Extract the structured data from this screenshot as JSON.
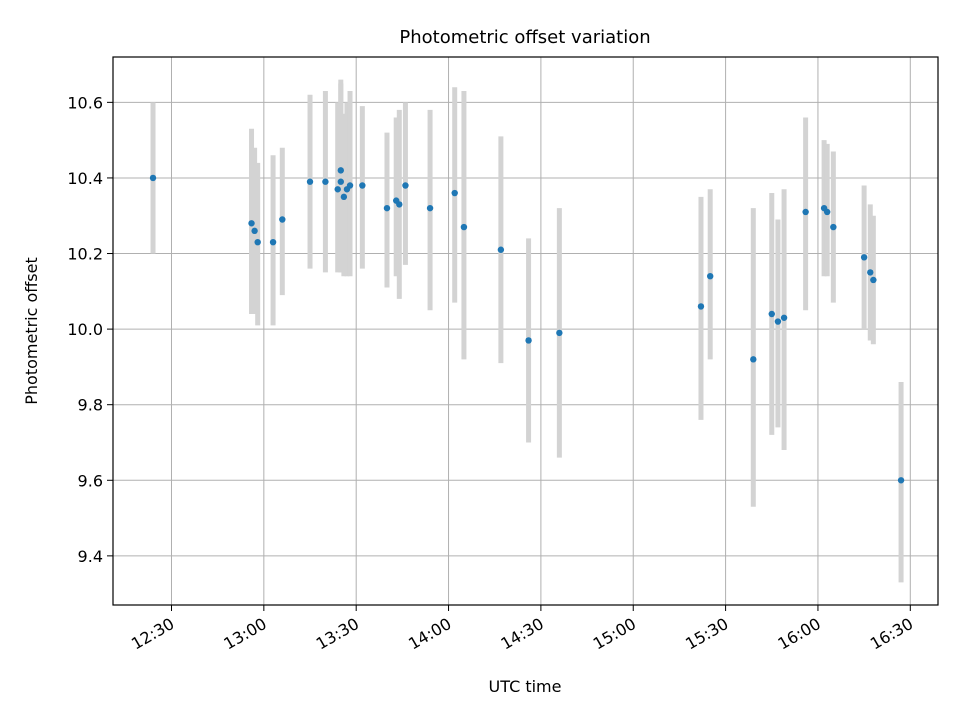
{
  "chart_data": {
    "type": "scatter",
    "title": "Photometric offset variation",
    "xlabel": "UTC time",
    "ylabel": "Photometric offset",
    "x_ticks": [
      "12:30",
      "13:00",
      "13:30",
      "14:00",
      "14:30",
      "15:00",
      "15:30",
      "16:00",
      "16:30"
    ],
    "y_ticks": [
      "9.4",
      "9.6",
      "9.8",
      "10.0",
      "10.2",
      "10.4",
      "10.6"
    ],
    "xlim": [
      "12:11",
      "16:39"
    ],
    "ylim": [
      9.27,
      10.72
    ],
    "grid": true,
    "marker_color": "#1f77b4",
    "errorbar_color": "#d3d3d3",
    "points": [
      {
        "x": "12:24",
        "y": 10.4,
        "lo": 10.2,
        "hi": 10.6
      },
      {
        "x": "12:56",
        "y": 10.28,
        "lo": 10.04,
        "hi": 10.53
      },
      {
        "x": "12:57",
        "y": 10.26,
        "lo": 10.04,
        "hi": 10.48
      },
      {
        "x": "12:58",
        "y": 10.23,
        "lo": 10.01,
        "hi": 10.44
      },
      {
        "x": "13:03",
        "y": 10.23,
        "lo": 10.01,
        "hi": 10.46
      },
      {
        "x": "13:06",
        "y": 10.29,
        "lo": 10.09,
        "hi": 10.48
      },
      {
        "x": "13:15",
        "y": 10.39,
        "lo": 10.16,
        "hi": 10.62
      },
      {
        "x": "13:20",
        "y": 10.39,
        "lo": 10.15,
        "hi": 10.63
      },
      {
        "x": "13:24",
        "y": 10.37,
        "lo": 10.15,
        "hi": 10.6
      },
      {
        "x": "13:25",
        "y": 10.42,
        "lo": 10.15,
        "hi": 10.66
      },
      {
        "x": "13:25",
        "y": 10.39,
        "lo": 10.15,
        "hi": 10.65
      },
      {
        "x": "13:26",
        "y": 10.35,
        "lo": 10.14,
        "hi": 10.57
      },
      {
        "x": "13:27",
        "y": 10.37,
        "lo": 10.14,
        "hi": 10.6
      },
      {
        "x": "13:28",
        "y": 10.38,
        "lo": 10.14,
        "hi": 10.63
      },
      {
        "x": "13:32",
        "y": 10.38,
        "lo": 10.16,
        "hi": 10.59
      },
      {
        "x": "13:40",
        "y": 10.32,
        "lo": 10.11,
        "hi": 10.52
      },
      {
        "x": "13:43",
        "y": 10.34,
        "lo": 10.14,
        "hi": 10.56
      },
      {
        "x": "13:44",
        "y": 10.33,
        "lo": 10.08,
        "hi": 10.58
      },
      {
        "x": "13:46",
        "y": 10.38,
        "lo": 10.17,
        "hi": 10.6
      },
      {
        "x": "13:54",
        "y": 10.32,
        "lo": 10.05,
        "hi": 10.58
      },
      {
        "x": "14:02",
        "y": 10.36,
        "lo": 10.07,
        "hi": 10.64
      },
      {
        "x": "14:05",
        "y": 10.27,
        "lo": 9.92,
        "hi": 10.63
      },
      {
        "x": "14:17",
        "y": 10.21,
        "lo": 9.91,
        "hi": 10.51
      },
      {
        "x": "14:26",
        "y": 9.97,
        "lo": 9.7,
        "hi": 10.24
      },
      {
        "x": "14:36",
        "y": 9.99,
        "lo": 9.66,
        "hi": 10.32
      },
      {
        "x": "15:22",
        "y": 10.06,
        "lo": 9.76,
        "hi": 10.35
      },
      {
        "x": "15:25",
        "y": 10.14,
        "lo": 9.92,
        "hi": 10.37
      },
      {
        "x": "15:39",
        "y": 9.92,
        "lo": 9.53,
        "hi": 10.32
      },
      {
        "x": "15:45",
        "y": 10.04,
        "lo": 9.72,
        "hi": 10.36
      },
      {
        "x": "15:47",
        "y": 10.02,
        "lo": 9.74,
        "hi": 10.29
      },
      {
        "x": "15:49",
        "y": 10.03,
        "lo": 9.68,
        "hi": 10.37
      },
      {
        "x": "15:56",
        "y": 10.31,
        "lo": 10.05,
        "hi": 10.56
      },
      {
        "x": "16:02",
        "y": 10.32,
        "lo": 10.14,
        "hi": 10.5
      },
      {
        "x": "16:03",
        "y": 10.31,
        "lo": 10.14,
        "hi": 10.49
      },
      {
        "x": "16:05",
        "y": 10.27,
        "lo": 10.07,
        "hi": 10.47
      },
      {
        "x": "16:15",
        "y": 10.19,
        "lo": 10.0,
        "hi": 10.38
      },
      {
        "x": "16:17",
        "y": 10.15,
        "lo": 9.97,
        "hi": 10.33
      },
      {
        "x": "16:18",
        "y": 10.13,
        "lo": 9.96,
        "hi": 10.3
      },
      {
        "x": "16:27",
        "y": 9.6,
        "lo": 9.33,
        "hi": 9.86
      }
    ]
  }
}
